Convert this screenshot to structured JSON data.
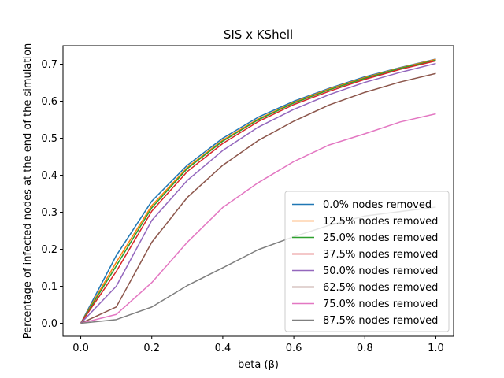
{
  "chart_data": {
    "type": "line",
    "title": "SIS x KShell",
    "xlabel": "beta (β)",
    "ylabel": "Percentage of infected nodes at the end of the simulation",
    "xlim": [
      -0.05,
      1.05
    ],
    "ylim": [
      -0.035,
      0.75
    ],
    "xticks": [
      0.0,
      0.2,
      0.4,
      0.6,
      0.8,
      1.0
    ],
    "xtick_labels": [
      "0.0",
      "0.2",
      "0.4",
      "0.6",
      "0.8",
      "1.0"
    ],
    "yticks": [
      0.0,
      0.1,
      0.2,
      0.3,
      0.4,
      0.5,
      0.6,
      0.7
    ],
    "ytick_labels": [
      "0.0",
      "0.1",
      "0.2",
      "0.3",
      "0.4",
      "0.5",
      "0.6",
      "0.7"
    ],
    "grid": false,
    "legend_position": "lower-right",
    "x": [
      0.0,
      0.1,
      0.2,
      0.3,
      0.4,
      0.5,
      0.6,
      0.7,
      0.8,
      0.9,
      1.0
    ],
    "series": [
      {
        "name": "0.0% nodes removed",
        "color": "#1f77b4",
        "values": [
          0.0,
          0.183,
          0.33,
          0.427,
          0.5,
          0.557,
          0.6,
          0.635,
          0.666,
          0.691,
          0.714
        ]
      },
      {
        "name": "12.5% nodes removed",
        "color": "#ff7f0e",
        "values": [
          0.0,
          0.165,
          0.318,
          0.421,
          0.495,
          0.552,
          0.597,
          0.633,
          0.664,
          0.69,
          0.713
        ]
      },
      {
        "name": "25.0% nodes removed",
        "color": "#2ca02c",
        "values": [
          0.0,
          0.155,
          0.312,
          0.418,
          0.492,
          0.55,
          0.595,
          0.631,
          0.662,
          0.689,
          0.711
        ]
      },
      {
        "name": "37.5% nodes removed",
        "color": "#d62728",
        "values": [
          0.0,
          0.14,
          0.303,
          0.41,
          0.486,
          0.545,
          0.591,
          0.627,
          0.659,
          0.686,
          0.709
        ]
      },
      {
        "name": "50.0% nodes removed",
        "color": "#9467bd",
        "values": [
          0.0,
          0.1,
          0.278,
          0.386,
          0.467,
          0.53,
          0.578,
          0.618,
          0.651,
          0.678,
          0.702
        ]
      },
      {
        "name": "62.5% nodes removed",
        "color": "#8c564b",
        "values": [
          0.0,
          0.044,
          0.219,
          0.34,
          0.427,
          0.494,
          0.546,
          0.59,
          0.624,
          0.652,
          0.675
        ]
      },
      {
        "name": "75.0% nodes removed",
        "color": "#e377c2",
        "values": [
          0.0,
          0.024,
          0.11,
          0.219,
          0.313,
          0.38,
          0.437,
          0.482,
          0.512,
          0.544,
          0.566
        ]
      },
      {
        "name": "87.5% nodes removed",
        "color": "#7f7f7f",
        "values": [
          0.0,
          0.01,
          0.044,
          0.102,
          0.15,
          0.199,
          0.234,
          0.265,
          0.29,
          0.302,
          0.314
        ]
      }
    ]
  }
}
